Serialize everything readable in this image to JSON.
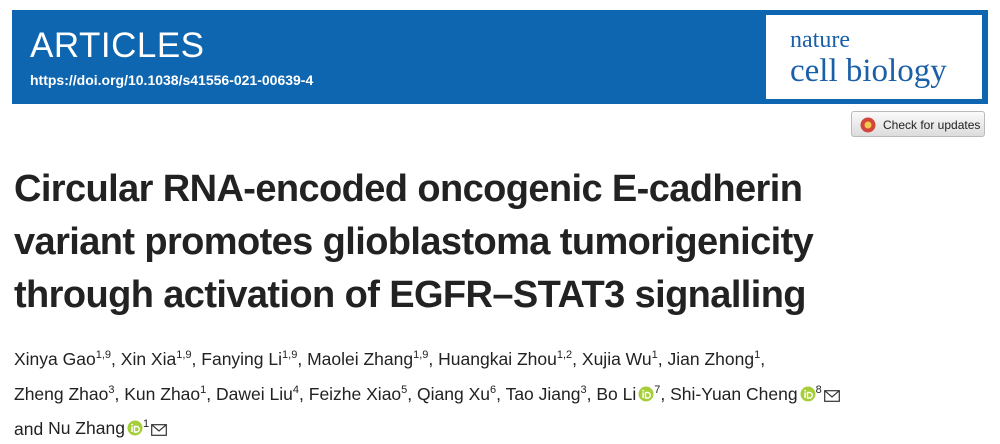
{
  "header": {
    "section": "ARTICLES",
    "doi": "https://doi.org/10.1038/s41556-021-00639-4",
    "journal": [
      "nature",
      "cell biology"
    ]
  },
  "check_updates": "Check for updates",
  "title_lines": [
    "Circular RNA-encoded oncogenic E-cadherin",
    "variant promotes glioblastoma tumorigenicity",
    "through activation of EGFR–STAT3 signalling"
  ],
  "authors_separator": ",",
  "authors_conjunction": "and",
  "authors": [
    {
      "name": "Xinya Gao",
      "affiliations": "1,9"
    },
    {
      "name": "Xin Xia",
      "affiliations": "1,9"
    },
    {
      "name": "Fanying Li",
      "affiliations": "1,9"
    },
    {
      "name": "Maolei Zhang",
      "affiliations": "1,9"
    },
    {
      "name": "Huangkai Zhou",
      "affiliations": "1,2"
    },
    {
      "name": "Xujia Wu",
      "affiliations": "1"
    },
    {
      "name": "Jian Zhong",
      "affiliations": "1"
    },
    {
      "name": "Zheng Zhao",
      "affiliations": "3"
    },
    {
      "name": "Kun Zhao",
      "affiliations": "1"
    },
    {
      "name": "Dawei Liu",
      "affiliations": "4"
    },
    {
      "name": "Feizhe Xiao",
      "affiliations": "5"
    },
    {
      "name": "Qiang Xu",
      "affiliations": "6"
    },
    {
      "name": "Tao Jiang",
      "affiliations": "3"
    },
    {
      "name": "Bo Li",
      "affiliations": "7",
      "orcid": true
    },
    {
      "name": "Shi-Yuan Cheng",
      "affiliations": "8",
      "orcid": true,
      "corresponding": true
    },
    {
      "name": "Nu Zhang",
      "affiliations": "1",
      "orcid": true,
      "corresponding": true
    }
  ]
}
